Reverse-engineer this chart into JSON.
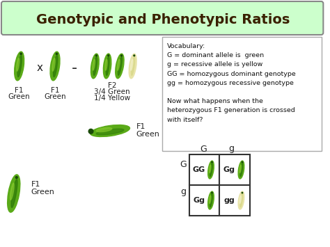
{
  "title": "Genotypic and Phenotypic Ratios",
  "title_bg": "#ccffcc",
  "title_border": "#888888",
  "title_color": "#3a2000",
  "bg_color": "#ffffff",
  "vocab_lines": [
    "Vocabulary:",
    "G = dominant allele is  green",
    "g = recessive allele is yellow",
    "GG = homozygous dominant genotype",
    "gg = homozygous recessive genotype",
    "",
    "Now what happens when the",
    "heterozygous F1 generation is crossed",
    "with itself?"
  ],
  "punnett_cells": [
    [
      "GG",
      "Gg"
    ],
    [
      "Gg",
      "gg"
    ]
  ],
  "punnett_yellow": [
    [
      false,
      false
    ],
    [
      false,
      true
    ]
  ],
  "cross_symbol": "x",
  "dash_symbol": "-",
  "text_color": "#222222",
  "pod_green_outer": "#4a9a10",
  "pod_green_mid": "#2d7a05",
  "pod_green_inner": "#6ab820",
  "pod_yellow_outer": "#e8e0a0",
  "pod_yellow_mid": "#c8c870",
  "pod_yellow_inner": "#f0f0c0"
}
